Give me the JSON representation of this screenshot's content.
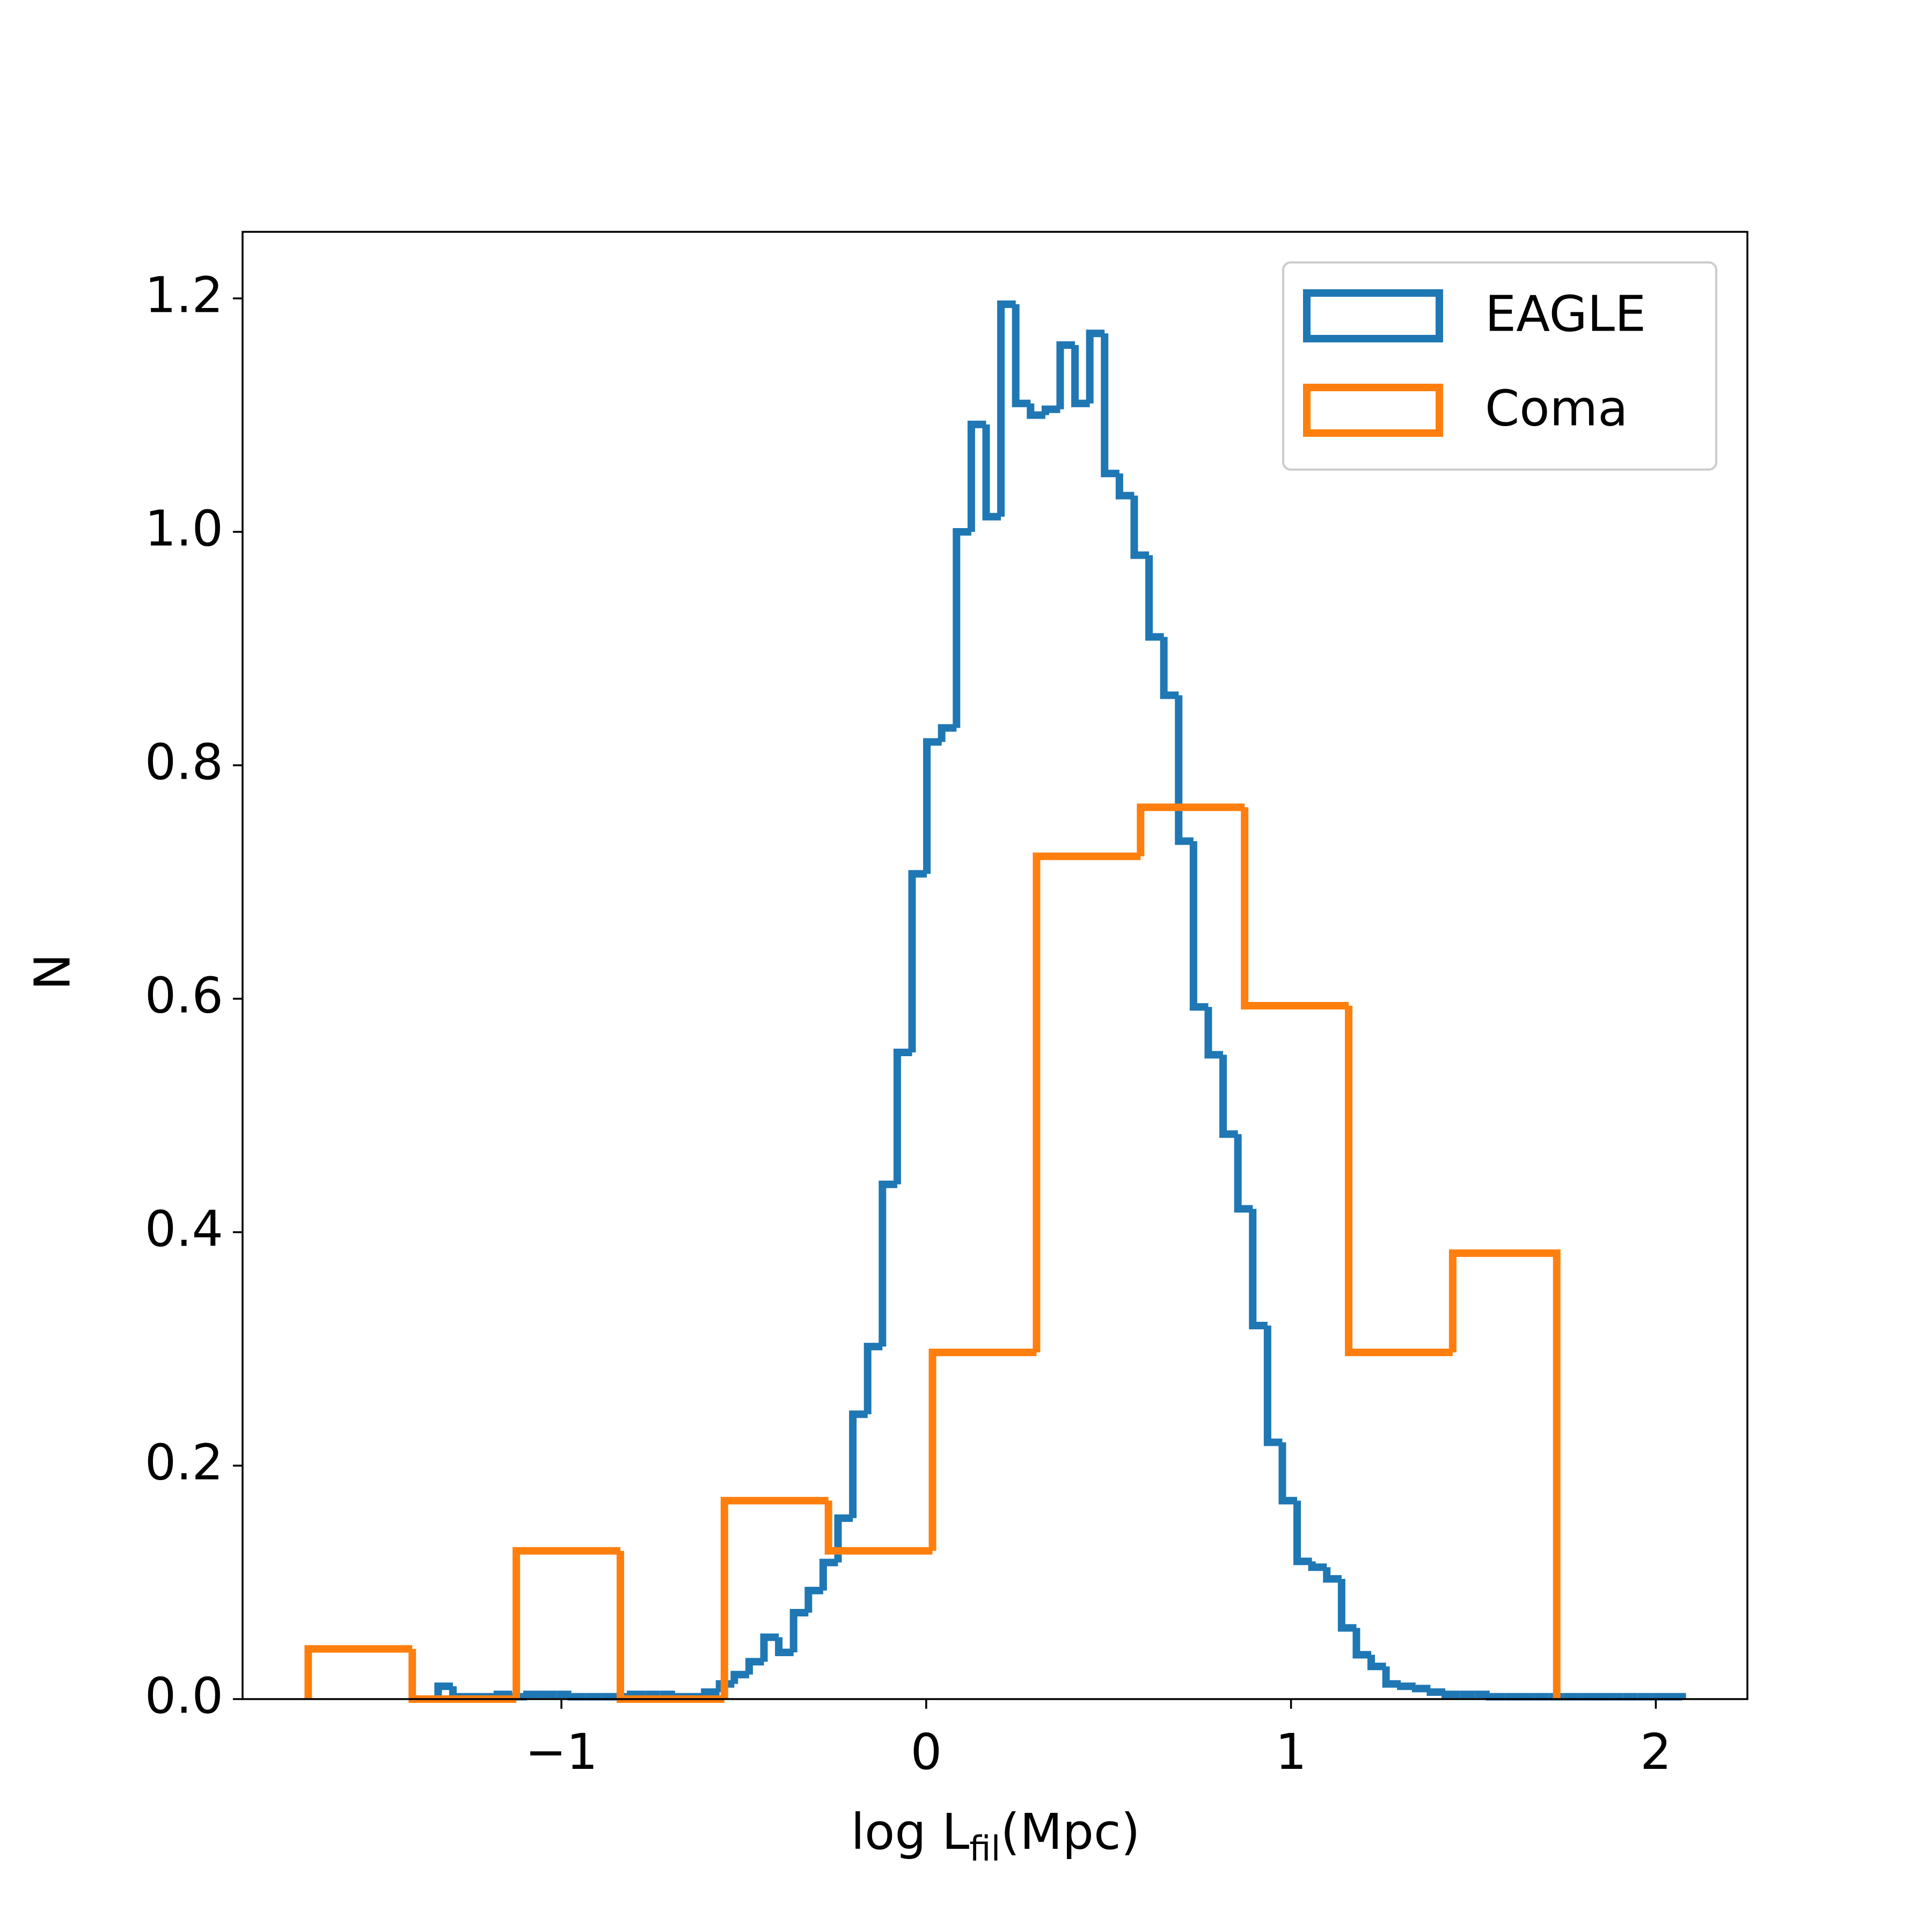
{
  "chart_data": {
    "type": "histogram",
    "x_label": [
      "log L",
      "fil",
      "(Mpc)"
    ],
    "y_label": "N",
    "xlim": [
      -1.874,
      2.251
    ],
    "ylim": [
      0,
      1.257
    ],
    "xticks": [
      {
        "value": -1,
        "label": "−1"
      },
      0,
      1,
      2
    ],
    "yticks": [
      {
        "value": 0,
        "label": "0.0"
      },
      0.2,
      0.4,
      0.6,
      0.8,
      {
        "value": 1,
        "label": "1.0"
      },
      1.2
    ],
    "legend": "upper right",
    "series": [
      {
        "name": "EAGLE",
        "color": "#1f77b4",
        "bins": [
          -1.338,
          -1.2974,
          -1.2568,
          -1.2162,
          -1.1756,
          -1.135,
          -1.0944,
          -1.0538,
          -1.0132,
          -0.9726,
          -0.932,
          -0.8914,
          -0.8508,
          -0.8102,
          -0.7696,
          -0.729,
          -0.6884,
          -0.6478,
          -0.6072,
          -0.5666,
          -0.526,
          -0.4854,
          -0.4448,
          -0.4042,
          -0.3636,
          -0.323,
          -0.2824,
          -0.2418,
          -0.2012,
          -0.1606,
          -0.12,
          -0.0794,
          -0.0388,
          0.0018,
          0.0424,
          0.083,
          0.1236,
          0.1642,
          0.2048,
          0.2454,
          0.286,
          0.3266,
          0.3672,
          0.4078,
          0.4484,
          0.489,
          0.5296,
          0.5702,
          0.6108,
          0.6514,
          0.692,
          0.7326,
          0.7732,
          0.8138,
          0.8544,
          0.895,
          0.9356,
          0.9762,
          1.0168,
          1.0574,
          1.098,
          1.1386,
          1.1792,
          1.2198,
          1.2604,
          1.301,
          1.3416,
          1.3822,
          1.4228,
          1.4634,
          1.504,
          1.5446,
          1.5852,
          1.6258,
          1.6664,
          1.707,
          1.7476,
          1.7882,
          1.8288,
          1.8694,
          1.91,
          1.9506,
          1.9912,
          2.0318,
          2.0724
        ],
        "values": [
          0.011,
          0.002,
          0.002,
          0.002,
          0.004,
          0.002,
          0.004,
          0.004,
          0.004,
          0.002,
          0.002,
          0.002,
          0.002,
          0.004,
          0.004,
          0.004,
          0.002,
          0.002,
          0.006,
          0.013,
          0.021,
          0.032,
          0.053,
          0.04,
          0.074,
          0.093,
          0.117,
          0.155,
          0.244,
          0.302,
          0.441,
          0.554,
          0.707,
          0.82,
          0.832,
          1.0,
          1.092,
          1.013,
          1.195,
          1.11,
          1.1,
          1.105,
          1.16,
          1.11,
          1.17,
          1.05,
          1.031,
          0.98,
          0.91,
          0.86,
          0.735,
          0.593,
          0.552,
          0.484,
          0.42,
          0.32,
          0.22,
          0.17,
          0.118,
          0.113,
          0.103,
          0.061,
          0.038,
          0.028,
          0.013,
          0.011,
          0.009,
          0.006,
          0.004,
          0.004,
          0.004,
          0.002,
          0.002,
          0.002,
          0.002,
          0.002,
          0.002,
          0.002,
          0.002,
          0.002,
          0.002,
          0.002,
          0.002,
          0.002
        ]
      },
      {
        "name": "Coma",
        "color": "#ff7f0e",
        "bins": [
          -1.694,
          -1.4088,
          -1.1236,
          -0.8384,
          -0.5532,
          -0.268,
          0.0172,
          0.3024,
          0.5876,
          0.8728,
          1.158,
          1.4432,
          1.7284
        ],
        "values": [
          0.043,
          0,
          0.127,
          0,
          0.17,
          0.127,
          0.297,
          0.722,
          0.764,
          0.594,
          0.297,
          0.382
        ]
      }
    ]
  }
}
